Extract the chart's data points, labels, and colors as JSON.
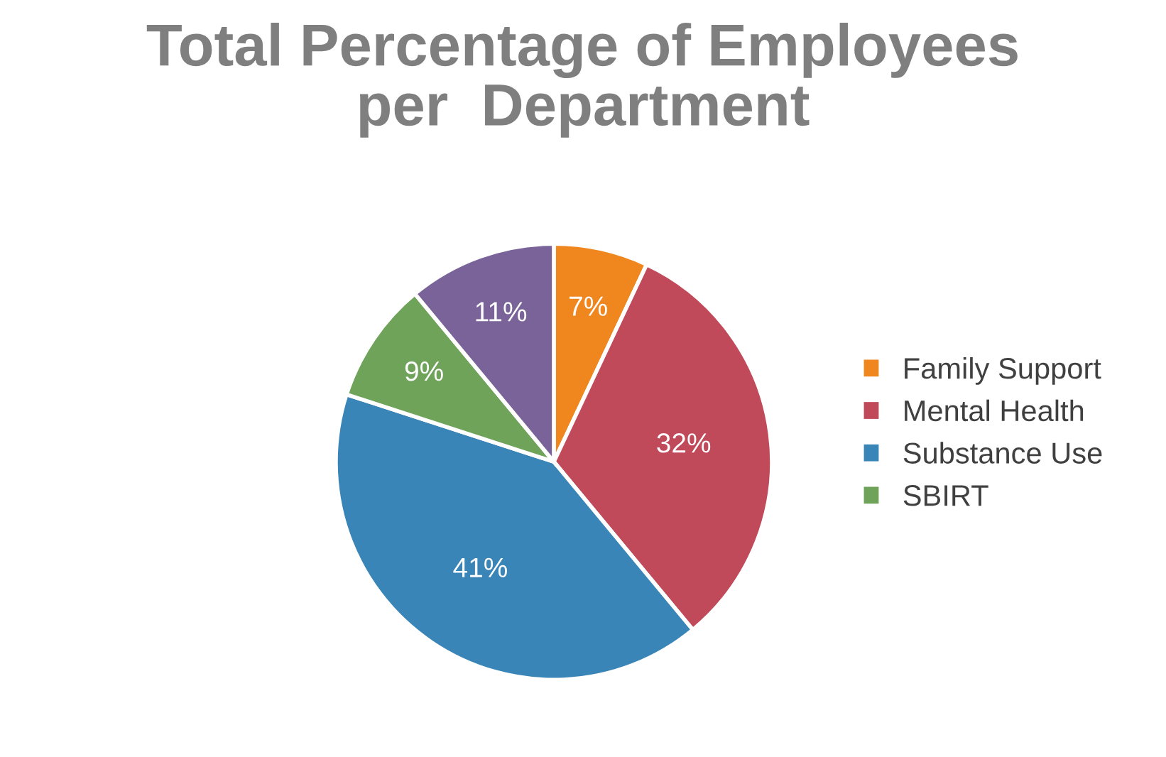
{
  "chart_data": {
    "type": "pie",
    "title": "Total Percentage of Employees\nper  Department",
    "categories": [
      "Family Support",
      "Mental Health",
      "Substance Use",
      "SBIRT",
      null
    ],
    "values": [
      7,
      32,
      41,
      9,
      11
    ],
    "colors": [
      "#f0861e",
      "#c04a5a",
      "#3a85b8",
      "#6fa35a",
      "#7a6398"
    ],
    "value_labels": [
      "7%",
      "32%",
      "41%",
      "9%",
      "11%"
    ],
    "legend": "right"
  }
}
